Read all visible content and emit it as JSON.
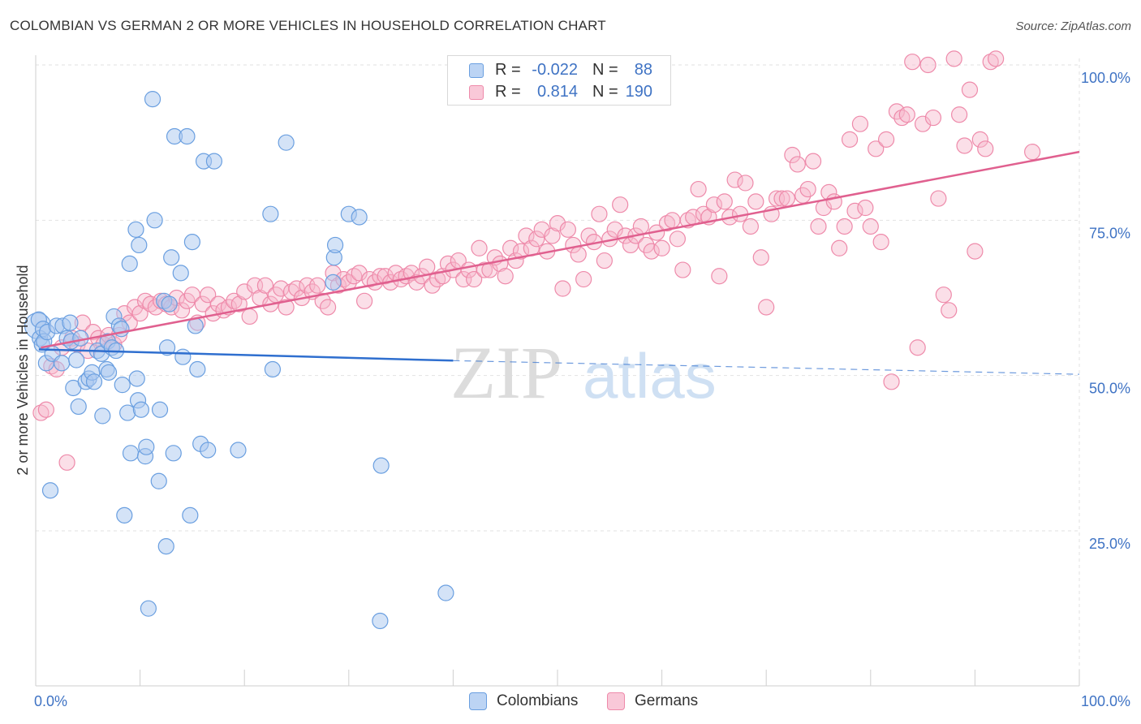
{
  "title": "COLOMBIAN VS GERMAN 2 OR MORE VEHICLES IN HOUSEHOLD CORRELATION CHART",
  "source": "Source: ZipAtlas.com",
  "legend": {
    "rows": [
      {
        "r_label": "R =",
        "r_value": "-0.022",
        "n_label": "N =",
        "n_value": "88"
      },
      {
        "r_label": "R =",
        "r_value": "0.814",
        "n_label": "N =",
        "n_value": "190"
      }
    ]
  },
  "bottom_legend": [
    "Colombians",
    "Germans"
  ],
  "watermark": {
    "zip": "ZIP",
    "atlas": "atlas"
  },
  "colors": {
    "colombian_fill": "#a9c8f0",
    "colombian_stroke": "#6a9fe0",
    "colombian_line": "#2f6fcf",
    "german_fill": "#f7b8cc",
    "german_stroke": "#ee8aaa",
    "german_line": "#e0608f",
    "tick_label": "#3f73c4",
    "grid": "#e2e2e2"
  },
  "chart_data": {
    "type": "scatter",
    "title": "COLOMBIAN VS GERMAN 2 OR MORE VEHICLES IN HOUSEHOLD CORRELATION CHART",
    "xlabel": "",
    "ylabel": "2 or more Vehicles in Household",
    "xlim": [
      0,
      100
    ],
    "ylim": [
      0,
      105
    ],
    "x_ticks": [
      "0.0%",
      "100.0%"
    ],
    "y_ticks": [
      {
        "value": 25,
        "label": "25.0%"
      },
      {
        "value": 50,
        "label": "50.0%"
      },
      {
        "value": 75,
        "label": "75.0%"
      },
      {
        "value": 100,
        "label": "100.0%"
      }
    ],
    "grid": true,
    "legend_position": "top-center",
    "series": [
      {
        "name": "Colombians",
        "r": -0.022,
        "n": 88,
        "trend": {
          "x0": 0.3,
          "y0": 54.2,
          "x1": 40,
          "y1": 52.4,
          "dash_x1": 100,
          "dash_y1": 50.2
        },
        "points": [
          [
            0.2,
            58.0
          ],
          [
            0.3,
            59.0
          ],
          [
            0.4,
            56.0
          ],
          [
            0.6,
            55.0
          ],
          [
            0.7,
            57.5
          ],
          [
            0.8,
            55.5
          ],
          [
            1.0,
            52.0
          ],
          [
            1.1,
            57.0
          ],
          [
            1.4,
            31.5
          ],
          [
            1.6,
            53.5
          ],
          [
            2.0,
            58.0
          ],
          [
            2.5,
            52.0
          ],
          [
            2.6,
            58.0
          ],
          [
            3.0,
            56.0
          ],
          [
            3.3,
            58.5
          ],
          [
            3.4,
            55.5
          ],
          [
            3.6,
            48.0
          ],
          [
            3.9,
            52.5
          ],
          [
            4.1,
            45.0
          ],
          [
            4.3,
            56.0
          ],
          [
            4.8,
            49.0
          ],
          [
            5.1,
            49.5
          ],
          [
            5.4,
            50.5
          ],
          [
            5.6,
            49.0
          ],
          [
            5.9,
            54.0
          ],
          [
            6.3,
            53.5
          ],
          [
            6.4,
            43.5
          ],
          [
            6.8,
            51.0
          ],
          [
            6.9,
            55.5
          ],
          [
            7.0,
            50.5
          ],
          [
            7.3,
            54.5
          ],
          [
            7.5,
            59.5
          ],
          [
            7.7,
            54.0
          ],
          [
            8.0,
            58.0
          ],
          [
            8.2,
            57.5
          ],
          [
            8.3,
            48.5
          ],
          [
            8.5,
            27.5
          ],
          [
            8.8,
            44.0
          ],
          [
            9.0,
            68.0
          ],
          [
            9.1,
            37.5
          ],
          [
            9.6,
            73.5
          ],
          [
            9.7,
            49.5
          ],
          [
            9.8,
            46.0
          ],
          [
            9.9,
            71.0
          ],
          [
            10.1,
            44.5
          ],
          [
            10.5,
            37.0
          ],
          [
            10.6,
            38.5
          ],
          [
            10.8,
            12.5
          ],
          [
            11.2,
            94.5
          ],
          [
            11.4,
            75.0
          ],
          [
            11.8,
            33.0
          ],
          [
            11.9,
            44.5
          ],
          [
            12.3,
            62.0
          ],
          [
            12.5,
            22.5
          ],
          [
            12.6,
            54.5
          ],
          [
            12.8,
            61.5
          ],
          [
            13.0,
            69.0
          ],
          [
            13.2,
            37.5
          ],
          [
            13.3,
            88.5
          ],
          [
            13.9,
            66.5
          ],
          [
            14.1,
            53.0
          ],
          [
            14.5,
            88.5
          ],
          [
            14.8,
            27.5
          ],
          [
            15.0,
            71.5
          ],
          [
            15.3,
            58.0
          ],
          [
            15.5,
            51.0
          ],
          [
            15.8,
            39.0
          ],
          [
            16.1,
            84.5
          ],
          [
            16.5,
            38.0
          ],
          [
            17.1,
            84.5
          ],
          [
            19.4,
            38.0
          ],
          [
            22.5,
            76.0
          ],
          [
            22.7,
            51.0
          ],
          [
            24.0,
            87.5
          ],
          [
            28.5,
            65.0
          ],
          [
            28.6,
            69.0
          ],
          [
            28.7,
            71.0
          ],
          [
            30.0,
            76.0
          ],
          [
            31.0,
            75.5
          ],
          [
            33.0,
            10.5
          ],
          [
            33.1,
            35.5
          ],
          [
            39.3,
            15.0
          ]
        ]
      },
      {
        "name": "Germans",
        "r": 0.814,
        "n": 190,
        "trend": {
          "x0": 0.5,
          "y0": 54.5,
          "x1": 100,
          "y1": 86.0
        },
        "points": [
          [
            0.5,
            44.0
          ],
          [
            1.0,
            44.5
          ],
          [
            1.5,
            51.5
          ],
          [
            2.0,
            51.0
          ],
          [
            2.5,
            54.5
          ],
          [
            3.0,
            36.0
          ],
          [
            3.5,
            56.0
          ],
          [
            4.0,
            55.0
          ],
          [
            4.5,
            58.5
          ],
          [
            5.0,
            54.0
          ],
          [
            5.5,
            57.0
          ],
          [
            6.0,
            56.0
          ],
          [
            6.5,
            55.0
          ],
          [
            7.0,
            56.5
          ],
          [
            7.5,
            55.0
          ],
          [
            8.0,
            56.5
          ],
          [
            8.5,
            60.0
          ],
          [
            9.0,
            58.5
          ],
          [
            9.5,
            61.0
          ],
          [
            10.0,
            60.0
          ],
          [
            10.5,
            62.0
          ],
          [
            11.0,
            61.5
          ],
          [
            11.5,
            61.0
          ],
          [
            12.0,
            62.0
          ],
          [
            12.5,
            61.5
          ],
          [
            13.0,
            61.0
          ],
          [
            13.5,
            62.5
          ],
          [
            14.0,
            60.5
          ],
          [
            14.5,
            62.0
          ],
          [
            15.0,
            63.0
          ],
          [
            15.5,
            58.5
          ],
          [
            16.0,
            61.5
          ],
          [
            16.5,
            63.0
          ],
          [
            17.0,
            60.0
          ],
          [
            17.5,
            61.5
          ],
          [
            18.0,
            60.5
          ],
          [
            18.5,
            61.0
          ],
          [
            19.0,
            62.0
          ],
          [
            19.5,
            61.5
          ],
          [
            20.0,
            63.5
          ],
          [
            20.5,
            59.5
          ],
          [
            21.0,
            64.5
          ],
          [
            21.5,
            62.5
          ],
          [
            22.0,
            64.5
          ],
          [
            22.5,
            61.5
          ],
          [
            23.0,
            63.0
          ],
          [
            23.5,
            64.0
          ],
          [
            24.0,
            61.0
          ],
          [
            24.5,
            63.5
          ],
          [
            25.0,
            64.0
          ],
          [
            25.5,
            62.5
          ],
          [
            26.0,
            64.5
          ],
          [
            26.5,
            63.5
          ],
          [
            27.0,
            64.5
          ],
          [
            27.5,
            62.0
          ],
          [
            28.0,
            61.0
          ],
          [
            28.5,
            66.5
          ],
          [
            29.0,
            64.5
          ],
          [
            29.5,
            65.5
          ],
          [
            30.0,
            65.0
          ],
          [
            30.5,
            66.0
          ],
          [
            31.0,
            66.5
          ],
          [
            31.5,
            62.0
          ],
          [
            32.0,
            65.5
          ],
          [
            32.5,
            65.0
          ],
          [
            33.0,
            66.0
          ],
          [
            33.5,
            66.0
          ],
          [
            34.0,
            65.0
          ],
          [
            34.5,
            66.5
          ],
          [
            35.0,
            65.5
          ],
          [
            35.5,
            66.0
          ],
          [
            36.0,
            66.5
          ],
          [
            36.5,
            65.0
          ],
          [
            37.0,
            66.0
          ],
          [
            37.5,
            67.5
          ],
          [
            38.0,
            64.5
          ],
          [
            38.5,
            65.5
          ],
          [
            39.0,
            66.0
          ],
          [
            39.5,
            68.0
          ],
          [
            40.0,
            67.0
          ],
          [
            40.5,
            68.5
          ],
          [
            41.0,
            65.5
          ],
          [
            41.5,
            67.0
          ],
          [
            42.0,
            65.5
          ],
          [
            42.5,
            70.5
          ],
          [
            43.0,
            67.0
          ],
          [
            43.5,
            67.0
          ],
          [
            44.0,
            69.0
          ],
          [
            44.5,
            68.0
          ],
          [
            45.0,
            66.0
          ],
          [
            45.5,
            70.5
          ],
          [
            46.0,
            68.5
          ],
          [
            46.5,
            70.0
          ],
          [
            47.0,
            72.5
          ],
          [
            47.5,
            70.5
          ],
          [
            48.0,
            72.0
          ],
          [
            48.5,
            73.5
          ],
          [
            49.0,
            70.0
          ],
          [
            49.5,
            72.5
          ],
          [
            50.0,
            74.5
          ],
          [
            50.5,
            64.0
          ],
          [
            51.0,
            73.5
          ],
          [
            51.5,
            71.0
          ],
          [
            52.0,
            69.5
          ],
          [
            52.5,
            65.5
          ],
          [
            53.0,
            72.5
          ],
          [
            53.5,
            71.5
          ],
          [
            54.0,
            76.0
          ],
          [
            54.5,
            68.5
          ],
          [
            55.0,
            72.0
          ],
          [
            55.5,
            73.5
          ],
          [
            56.0,
            77.5
          ],
          [
            56.5,
            72.5
          ],
          [
            57.0,
            71.0
          ],
          [
            57.5,
            72.5
          ],
          [
            58.0,
            74.0
          ],
          [
            58.5,
            71.0
          ],
          [
            59.0,
            70.0
          ],
          [
            59.5,
            73.0
          ],
          [
            60.0,
            70.5
          ],
          [
            60.5,
            74.5
          ],
          [
            61.0,
            75.0
          ],
          [
            61.5,
            72.0
          ],
          [
            62.0,
            67.0
          ],
          [
            62.5,
            75.0
          ],
          [
            63.0,
            75.5
          ],
          [
            63.5,
            80.0
          ],
          [
            64.0,
            76.0
          ],
          [
            64.5,
            75.5
          ],
          [
            65.0,
            77.5
          ],
          [
            65.5,
            66.0
          ],
          [
            66.0,
            78.0
          ],
          [
            66.5,
            75.5
          ],
          [
            67.0,
            81.5
          ],
          [
            67.5,
            76.0
          ],
          [
            68.0,
            81.0
          ],
          [
            68.5,
            74.0
          ],
          [
            69.0,
            78.0
          ],
          [
            69.5,
            69.0
          ],
          [
            70.0,
            61.0
          ],
          [
            70.5,
            76.0
          ],
          [
            71.0,
            78.5
          ],
          [
            71.5,
            78.5
          ],
          [
            72.0,
            78.5
          ],
          [
            72.5,
            85.5
          ],
          [
            73.0,
            84.0
          ],
          [
            73.5,
            79.0
          ],
          [
            74.0,
            80.0
          ],
          [
            74.5,
            84.5
          ],
          [
            75.0,
            74.0
          ],
          [
            75.5,
            77.0
          ],
          [
            76.0,
            79.5
          ],
          [
            76.5,
            78.0
          ],
          [
            77.0,
            70.5
          ],
          [
            77.5,
            74.0
          ],
          [
            78.0,
            88.0
          ],
          [
            78.5,
            76.5
          ],
          [
            79.0,
            90.5
          ],
          [
            79.5,
            77.0
          ],
          [
            80.0,
            74.0
          ],
          [
            80.5,
            86.5
          ],
          [
            81.0,
            71.5
          ],
          [
            81.5,
            88.0
          ],
          [
            82.0,
            49.0
          ],
          [
            82.5,
            92.5
          ],
          [
            83.0,
            91.5
          ],
          [
            83.5,
            92.0
          ],
          [
            84.0,
            100.5
          ],
          [
            84.5,
            54.5
          ],
          [
            85.0,
            90.5
          ],
          [
            85.5,
            100.0
          ],
          [
            86.0,
            91.5
          ],
          [
            86.5,
            78.5
          ],
          [
            87.0,
            63.0
          ],
          [
            87.5,
            60.5
          ],
          [
            88.0,
            101.0
          ],
          [
            88.5,
            92.0
          ],
          [
            89.0,
            87.0
          ],
          [
            89.5,
            96.0
          ],
          [
            90.0,
            70.0
          ],
          [
            90.5,
            88.0
          ],
          [
            91.0,
            86.5
          ],
          [
            91.5,
            100.5
          ],
          [
            92.0,
            101.0
          ],
          [
            95.5,
            86.0
          ]
        ]
      }
    ]
  }
}
